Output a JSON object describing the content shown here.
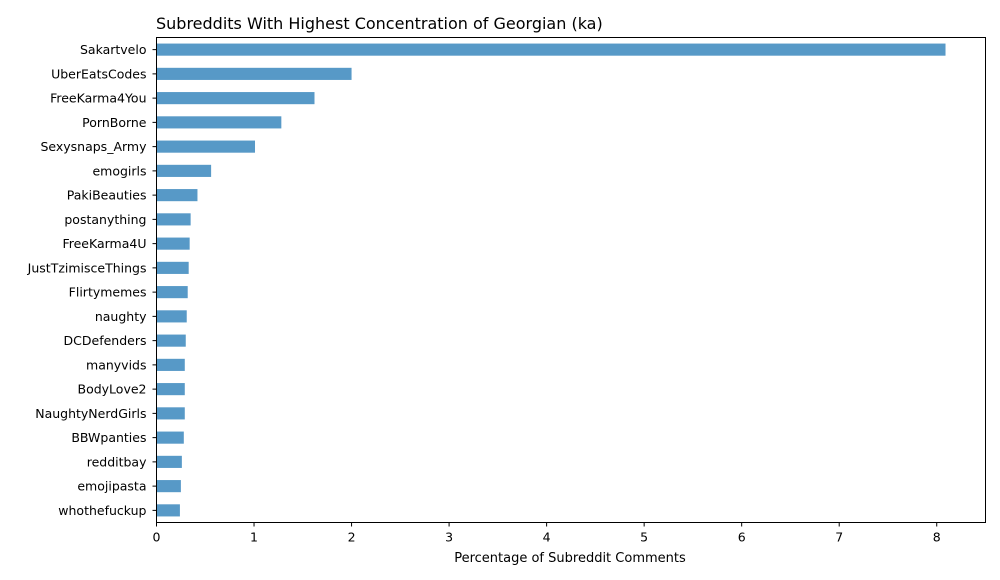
{
  "chart_data": {
    "type": "bar",
    "orientation": "horizontal",
    "title": "Subreddits With Highest Concentration of Georgian (ka)",
    "xlabel": "Percentage of Subreddit Comments",
    "ylabel": "",
    "xlim": [
      0,
      8.5
    ],
    "xticks": [
      "0",
      "1",
      "2",
      "3",
      "4",
      "5",
      "6",
      "7",
      "8"
    ],
    "bar_color": "#5799c7",
    "grid": false,
    "categories": [
      "Sakartvelo",
      "UberEatsCodes",
      "FreeKarma4You",
      "PornBorne",
      "Sexysnaps_Army",
      "emogirls",
      "PakiBeauties",
      "postanything",
      "FreeKarma4U",
      "JustTzimisceThings",
      "Flirtymemes",
      "naughty",
      "DCDefenders",
      "manyvids",
      "BodyLove2",
      "NaughtyNerdGirls",
      "BBWpanties",
      "redditbay",
      "emojipasta",
      "whothefuckup"
    ],
    "values": [
      8.09,
      2.0,
      1.62,
      1.28,
      1.01,
      0.56,
      0.42,
      0.35,
      0.34,
      0.33,
      0.32,
      0.31,
      0.3,
      0.29,
      0.29,
      0.29,
      0.28,
      0.26,
      0.25,
      0.24
    ]
  }
}
